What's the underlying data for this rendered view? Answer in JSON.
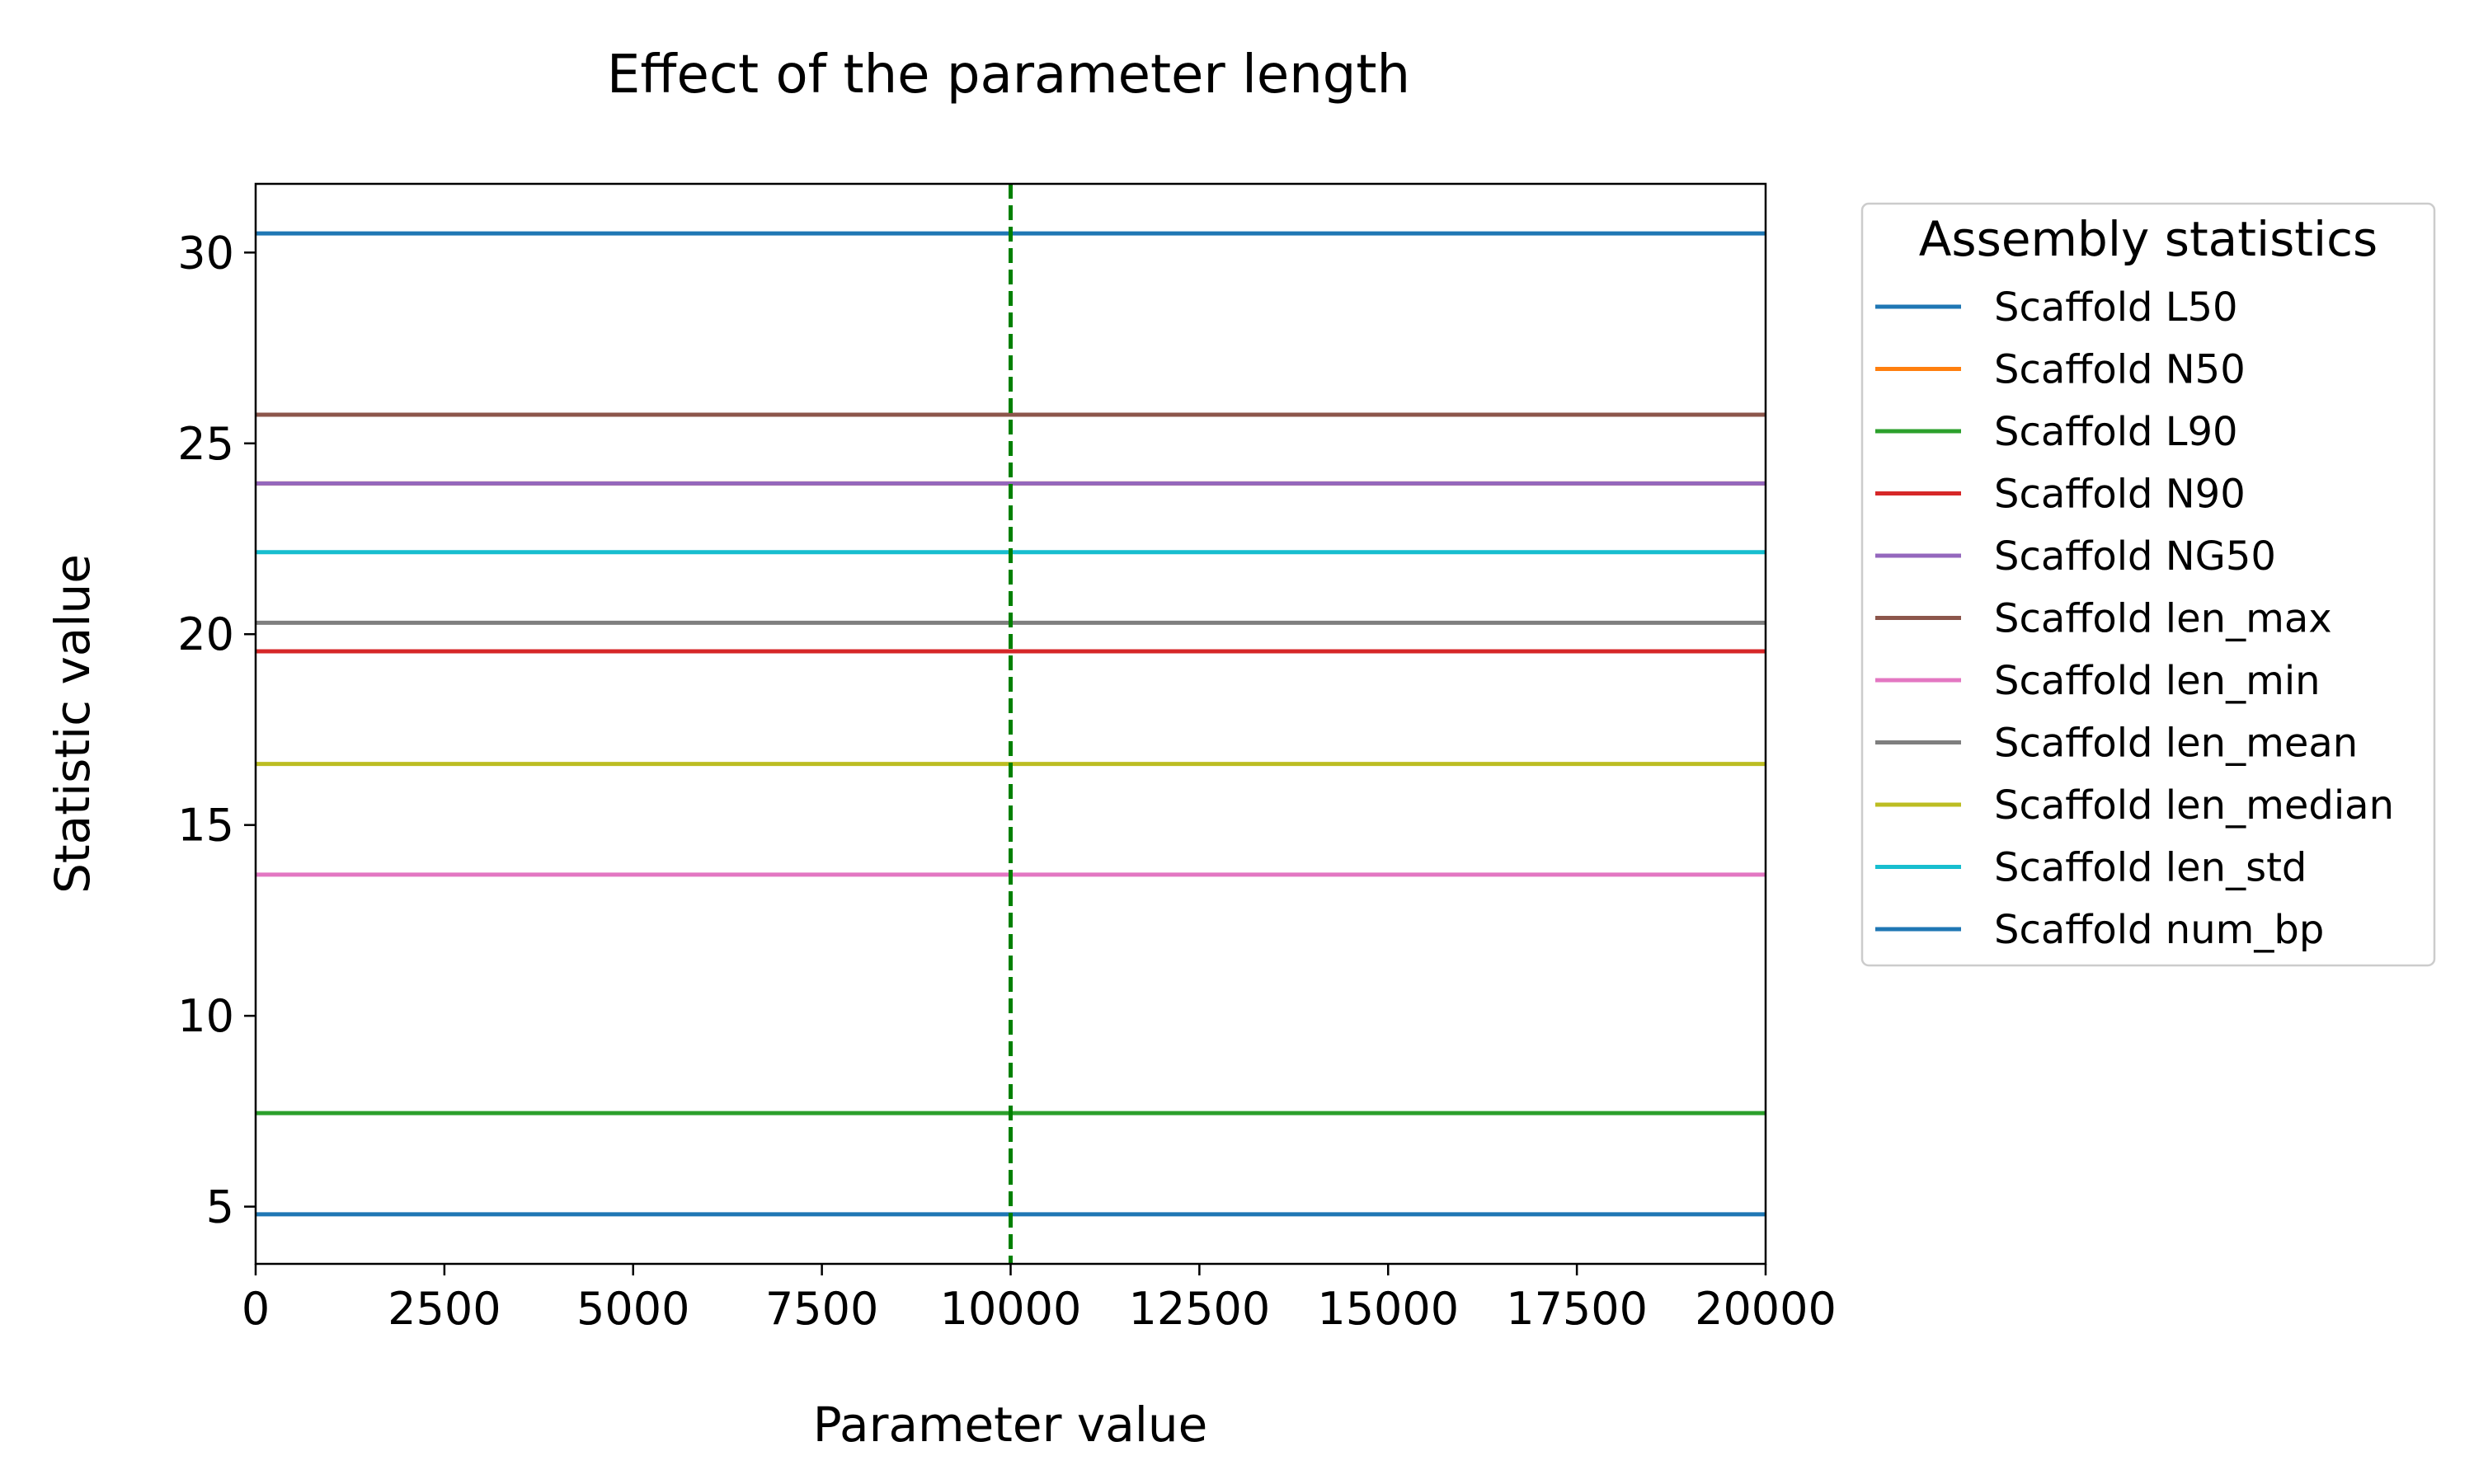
{
  "chart_data": {
    "type": "line",
    "title": "Effect of the parameter length",
    "xlabel": "Parameter value",
    "ylabel": "Statistic value",
    "xlim": [
      0,
      20000
    ],
    "ylim": [
      3.5,
      31.8
    ],
    "xticks": [
      0,
      2500,
      5000,
      7500,
      10000,
      12500,
      15000,
      17500,
      20000
    ],
    "yticks": [
      5,
      10,
      15,
      20,
      25,
      30
    ],
    "grid": false,
    "legend": {
      "title": "Assembly statistics",
      "placement": "outside-right"
    },
    "vline": {
      "x": 10000,
      "color": "#008000",
      "style": "dashed"
    },
    "series": [
      {
        "name": "Scaffold L50",
        "color": "#1f77b4",
        "x": [
          0,
          20000
        ],
        "y": [
          4.8,
          4.8
        ]
      },
      {
        "name": "Scaffold N50",
        "color": "#ff7f0e",
        "x": [
          0,
          20000
        ],
        "y": [
          23.95,
          23.95
        ]
      },
      {
        "name": "Scaffold L90",
        "color": "#2ca02c",
        "x": [
          0,
          20000
        ],
        "y": [
          7.45,
          7.45
        ]
      },
      {
        "name": "Scaffold N90",
        "color": "#d62728",
        "x": [
          0,
          20000
        ],
        "y": [
          19.55,
          19.55
        ]
      },
      {
        "name": "Scaffold NG50",
        "color": "#9467bd",
        "x": [
          0,
          20000
        ],
        "y": [
          23.95,
          23.95
        ]
      },
      {
        "name": "Scaffold len_max",
        "color": "#8c564b",
        "x": [
          0,
          20000
        ],
        "y": [
          25.75,
          25.75
        ]
      },
      {
        "name": "Scaffold len_min",
        "color": "#e377c2",
        "x": [
          0,
          20000
        ],
        "y": [
          13.7,
          13.7
        ]
      },
      {
        "name": "Scaffold len_mean",
        "color": "#7f7f7f",
        "x": [
          0,
          20000
        ],
        "y": [
          20.3,
          20.3
        ]
      },
      {
        "name": "Scaffold len_median",
        "color": "#bcbd22",
        "x": [
          0,
          20000
        ],
        "y": [
          16.6,
          16.6
        ]
      },
      {
        "name": "Scaffold len_std",
        "color": "#17becf",
        "x": [
          0,
          20000
        ],
        "y": [
          22.15,
          22.15
        ]
      },
      {
        "name": "Scaffold num_bp",
        "color": "#1f77b4",
        "x": [
          0,
          20000
        ],
        "y": [
          30.5,
          30.5
        ]
      }
    ]
  }
}
